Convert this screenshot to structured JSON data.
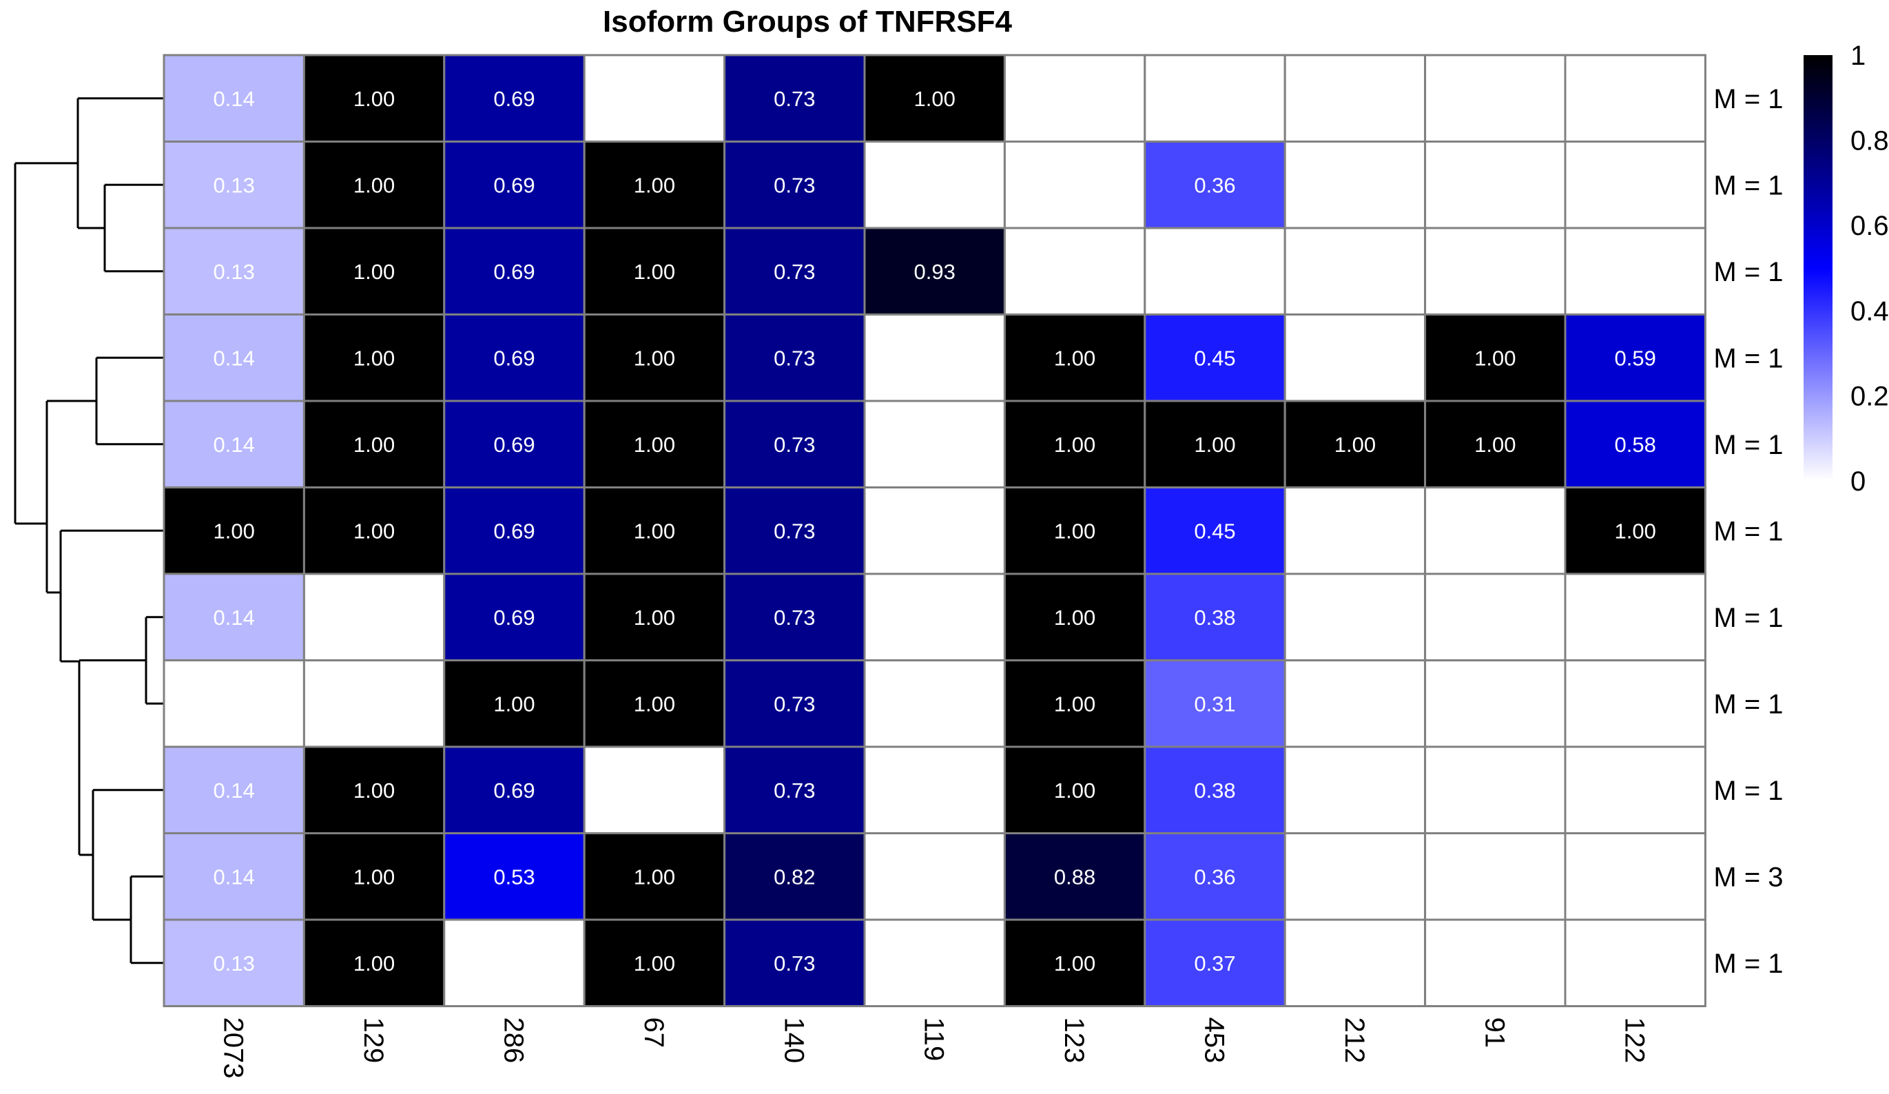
{
  "chart_data": {
    "type": "heatmap",
    "title": "Isoform Groups of TNFRSF4",
    "columns": [
      "2073",
      "129",
      "286",
      "67",
      "140",
      "119",
      "123",
      "453",
      "212",
      "91",
      "122"
    ],
    "row_labels": [
      "M = 1",
      "M = 1",
      "M = 1",
      "M = 1",
      "M = 1",
      "M = 1",
      "M = 1",
      "M = 1",
      "M = 1",
      "M = 3",
      "M = 1"
    ],
    "values": [
      [
        0.14,
        1.0,
        0.69,
        null,
        0.73,
        1.0,
        null,
        null,
        null,
        null,
        null
      ],
      [
        0.13,
        1.0,
        0.69,
        1.0,
        0.73,
        null,
        null,
        0.36,
        null,
        null,
        null
      ],
      [
        0.13,
        1.0,
        0.69,
        1.0,
        0.73,
        0.93,
        null,
        null,
        null,
        null,
        null
      ],
      [
        0.14,
        1.0,
        0.69,
        1.0,
        0.73,
        null,
        1.0,
        0.45,
        null,
        1.0,
        0.59
      ],
      [
        0.14,
        1.0,
        0.69,
        1.0,
        0.73,
        null,
        1.0,
        1.0,
        1.0,
        1.0,
        0.58
      ],
      [
        1.0,
        1.0,
        0.69,
        1.0,
        0.73,
        null,
        1.0,
        0.45,
        null,
        null,
        1.0
      ],
      [
        0.14,
        null,
        0.69,
        1.0,
        0.73,
        null,
        1.0,
        0.38,
        null,
        null,
        null
      ],
      [
        null,
        null,
        1.0,
        1.0,
        0.73,
        null,
        1.0,
        0.31,
        null,
        null,
        null
      ],
      [
        0.14,
        1.0,
        0.69,
        null,
        0.73,
        null,
        1.0,
        0.38,
        null,
        null,
        null
      ],
      [
        0.14,
        1.0,
        0.53,
        1.0,
        0.82,
        null,
        0.88,
        0.36,
        null,
        null,
        null
      ],
      [
        0.13,
        1.0,
        null,
        1.0,
        0.73,
        null,
        1.0,
        0.37,
        null,
        null,
        null
      ]
    ],
    "value_range": [
      0,
      1
    ],
    "legend": {
      "ticks": [
        "0",
        "0.2",
        "0.4",
        "0.6",
        "0.8",
        "1"
      ],
      "tick_values": [
        0,
        0.2,
        0.4,
        0.6,
        0.8,
        1
      ],
      "placement": "top-right"
    },
    "color_scale": {
      "low": "#ffffff",
      "mid": "#0000ff",
      "high": "#000000",
      "mid_value": 0.5
    },
    "cell_border_color": "#808080",
    "dendrogram": "rows"
  }
}
